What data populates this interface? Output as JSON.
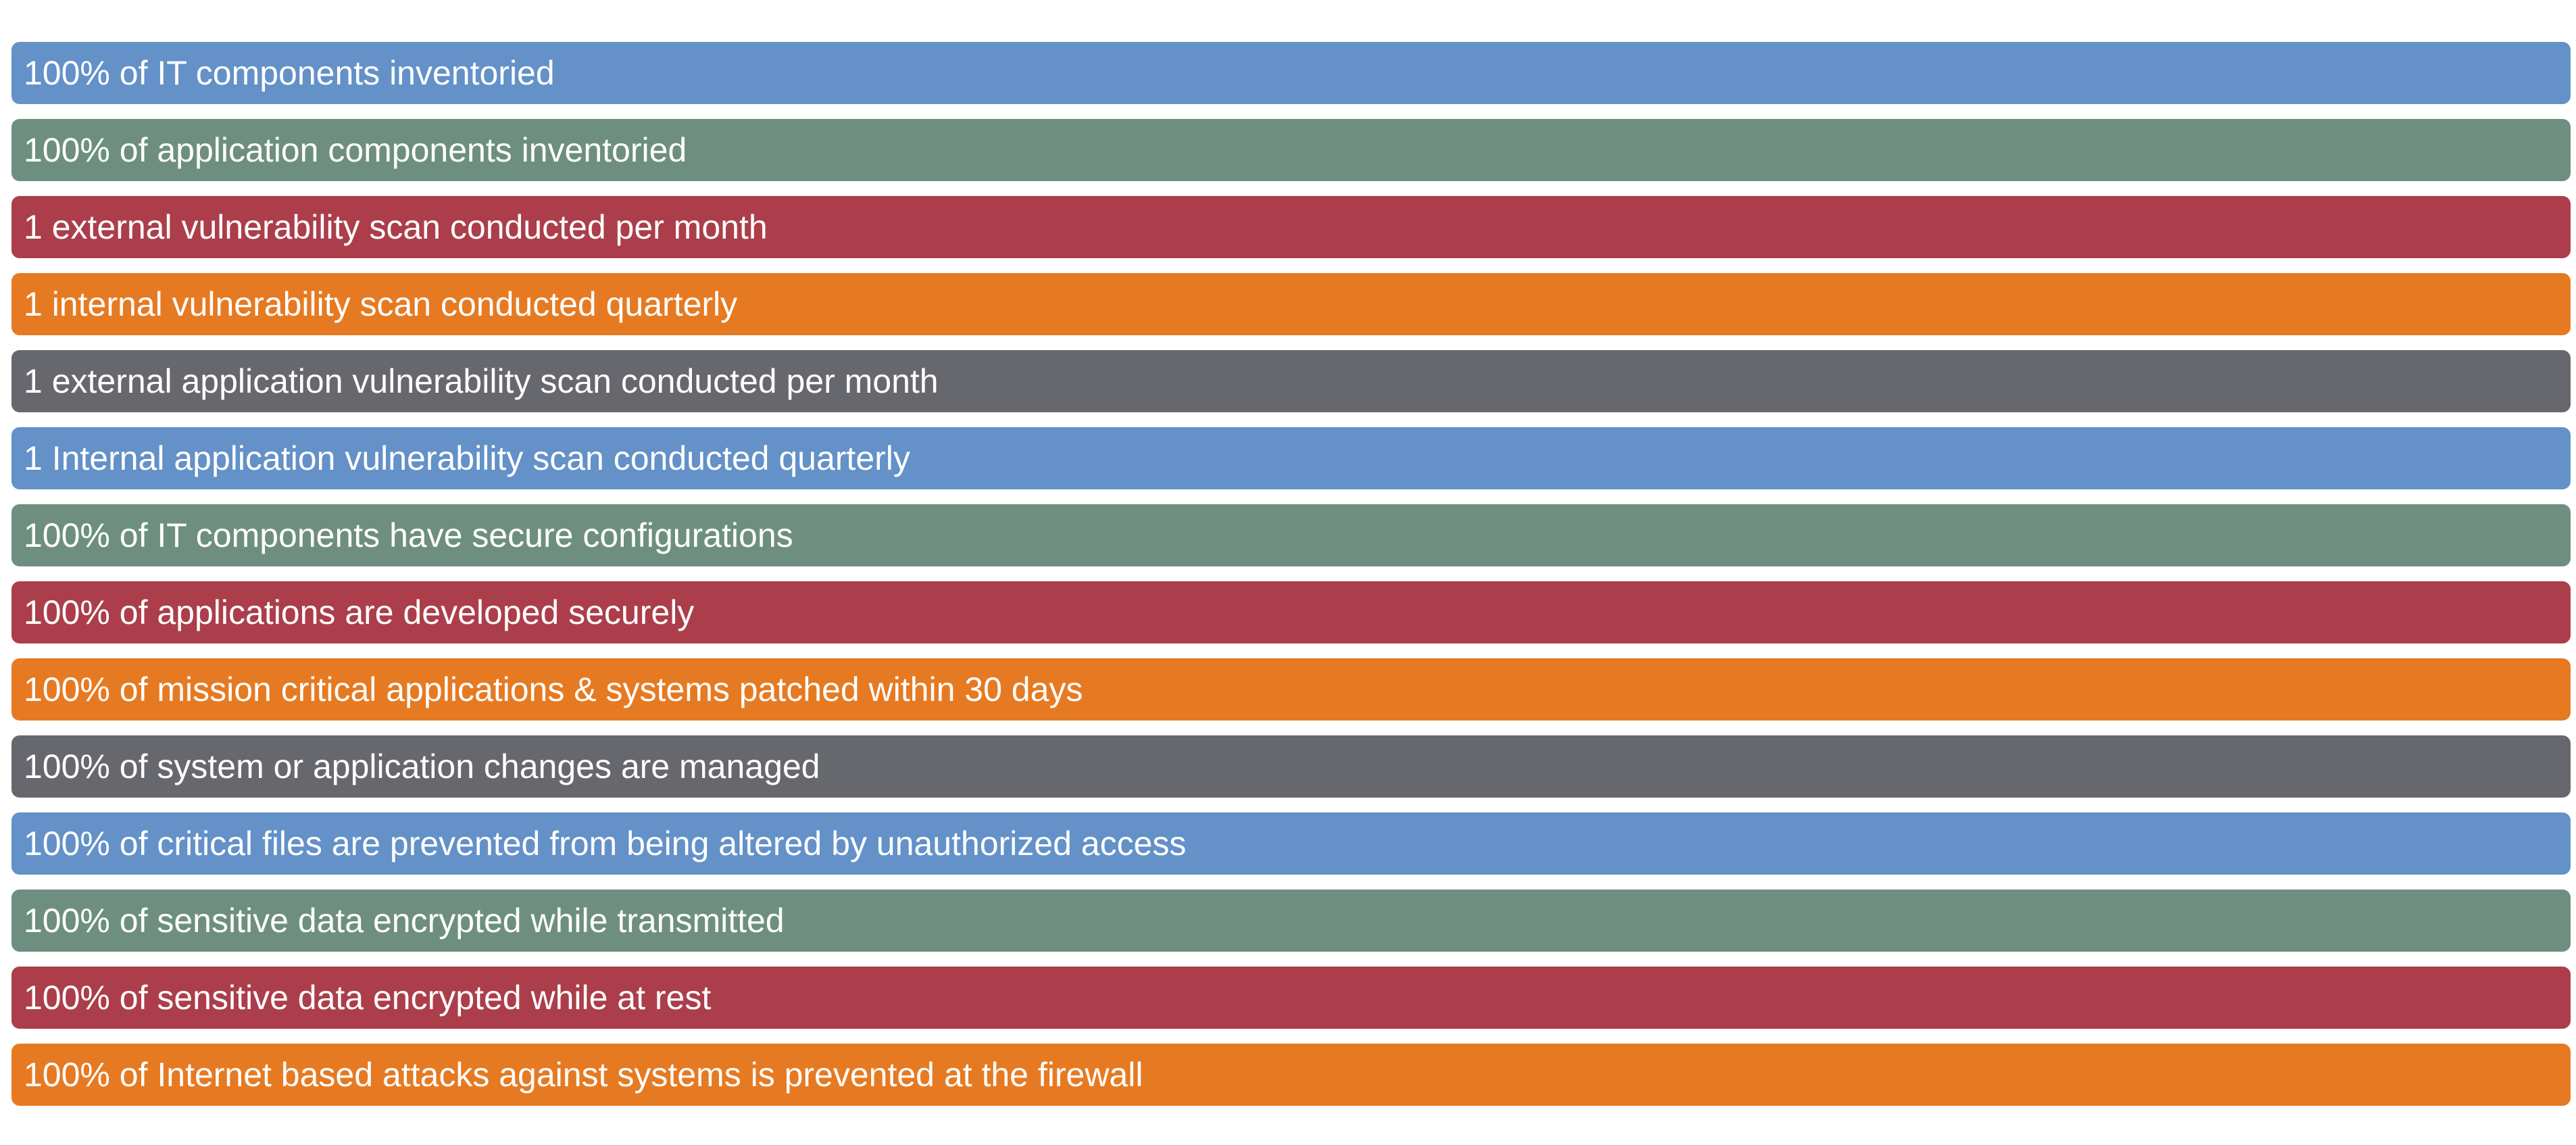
{
  "colors": {
    "blue": "#6391c8",
    "green": "#6e8f80",
    "red": "#ab3e4a",
    "orange": "#e67a22",
    "gray": "#67686e"
  },
  "items": [
    {
      "label": "100% of IT components inventoried",
      "color": "#6391c8"
    },
    {
      "label": "100% of application components inventoried",
      "color": "#6e8f80"
    },
    {
      "label": "1 external vulnerability scan conducted per month",
      "color": "#ab3e4a"
    },
    {
      "label": "1 internal vulnerability scan conducted quarterly",
      "color": "#e67a22"
    },
    {
      "label": "1 external application vulnerability scan conducted per month",
      "color": "#67686e"
    },
    {
      "label": "1 Internal application vulnerability scan conducted quarterly",
      "color": "#6391c8"
    },
    {
      "label": "100% of IT components have secure configurations",
      "color": "#6e8f80"
    },
    {
      "label": "100% of applications are developed securely",
      "color": "#ab3e4a"
    },
    {
      "label": "100% of mission critical applications & systems patched within 30 days",
      "color": "#e67a22"
    },
    {
      "label": "100% of system or application changes are managed",
      "color": "#67686e"
    },
    {
      "label": "100% of critical files are prevented from being altered by unauthorized access",
      "color": "#6391c8"
    },
    {
      "label": "100% of sensitive data encrypted while transmitted",
      "color": "#6e8f80"
    },
    {
      "label": "100% of sensitive data encrypted while at rest",
      "color": "#ab3e4a"
    },
    {
      "label": "100% of Internet based attacks against systems is prevented at the firewall",
      "color": "#e67a22"
    }
  ]
}
